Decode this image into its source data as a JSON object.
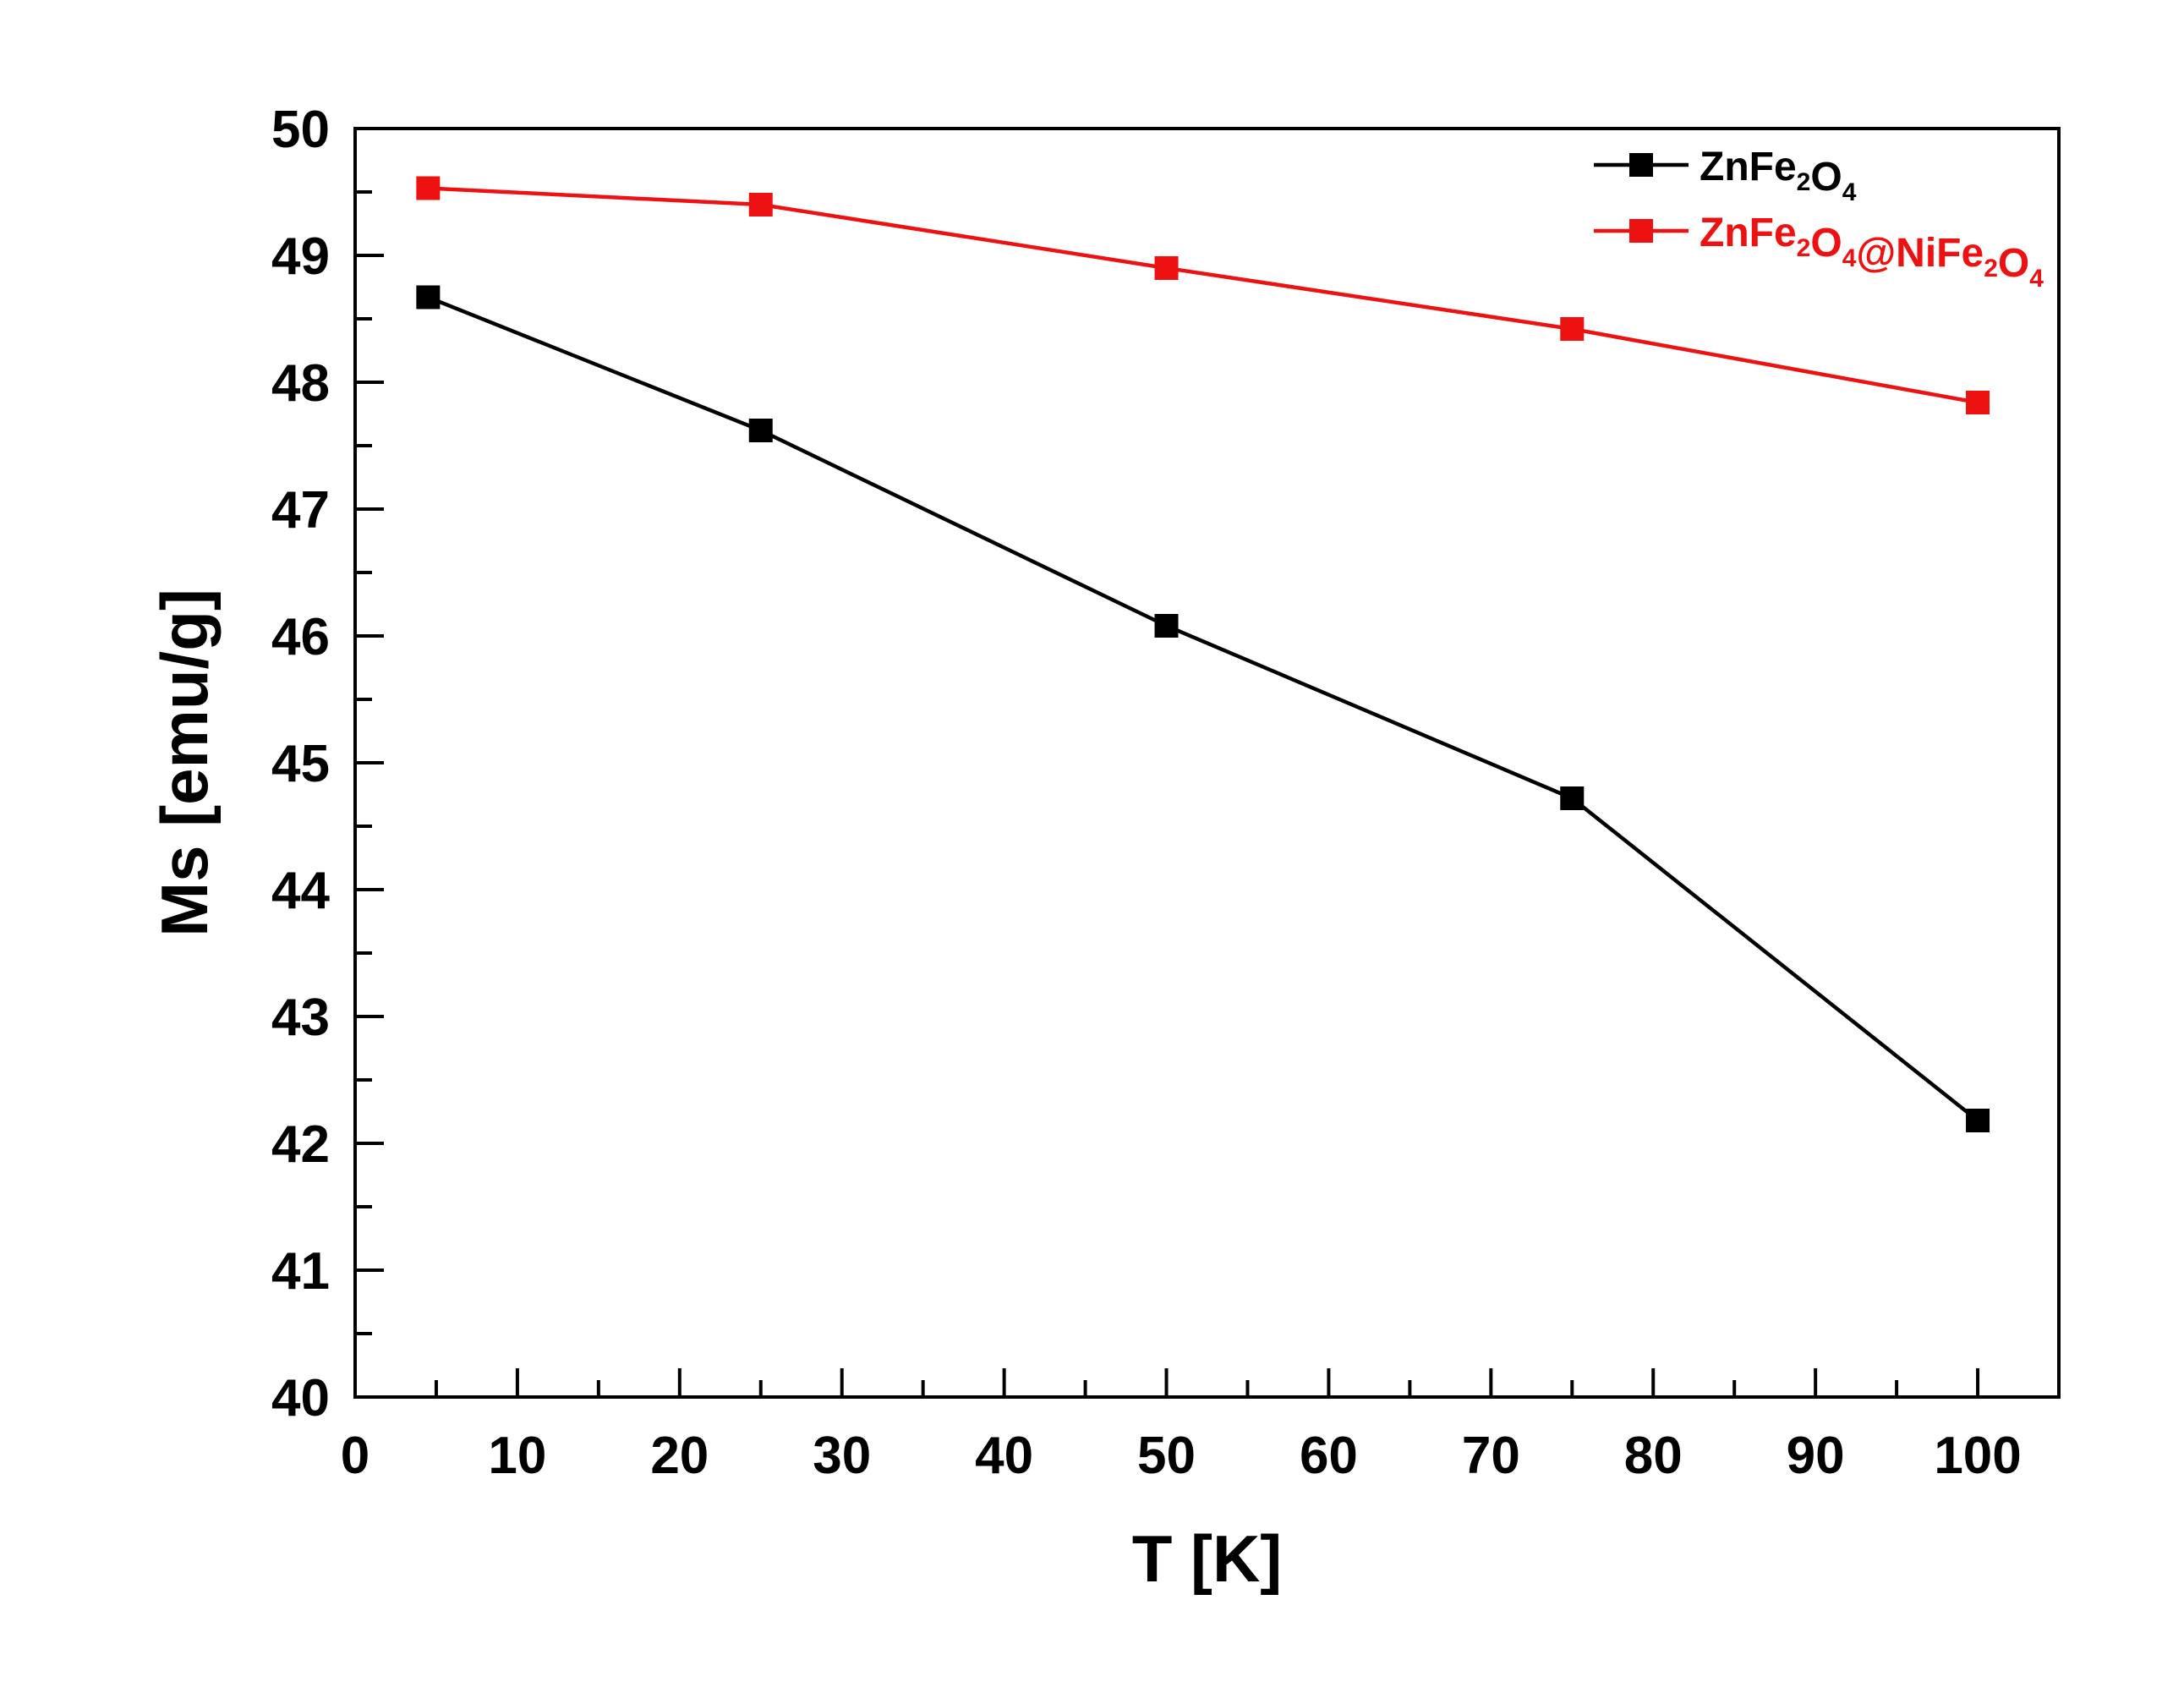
{
  "chart_data": {
    "type": "line",
    "title": "",
    "xlabel": "T [K]",
    "ylabel": "Ms [emu/g]",
    "xlim": [
      0,
      105
    ],
    "ylim": [
      40,
      50
    ],
    "xticks": [
      0,
      10,
      20,
      30,
      40,
      50,
      60,
      70,
      80,
      90,
      100
    ],
    "yticks": [
      40,
      41,
      42,
      43,
      44,
      45,
      46,
      47,
      48,
      49,
      50
    ],
    "grid": false,
    "legend_position": "top-right",
    "series": [
      {
        "name": "ZnFe2O4",
        "legend_parts": [
          {
            "text": "ZnFe",
            "sub": false
          },
          {
            "text": "2",
            "sub": true
          },
          {
            "text": "O",
            "sub": false
          },
          {
            "text": "4",
            "sub": true
          }
        ],
        "color": "#000000",
        "marker": "square",
        "x": [
          4.5,
          25,
          50,
          75,
          100
        ],
        "y": [
          48.67,
          47.62,
          46.08,
          44.72,
          42.18
        ]
      },
      {
        "name": "ZnFe2O4@NiFe2O4",
        "legend_parts": [
          {
            "text": "ZnFe",
            "sub": false
          },
          {
            "text": "2",
            "sub": true
          },
          {
            "text": "O",
            "sub": false
          },
          {
            "text": "4",
            "sub": true
          },
          {
            "text": "@NiFe",
            "sub": false
          },
          {
            "text": "2",
            "sub": true
          },
          {
            "text": "O",
            "sub": false
          },
          {
            "text": "4",
            "sub": true
          }
        ],
        "color": "#ee1111",
        "marker": "square",
        "x": [
          4.5,
          25,
          50,
          75,
          100
        ],
        "y": [
          49.53,
          49.4,
          48.9,
          48.42,
          47.84
        ]
      }
    ]
  }
}
